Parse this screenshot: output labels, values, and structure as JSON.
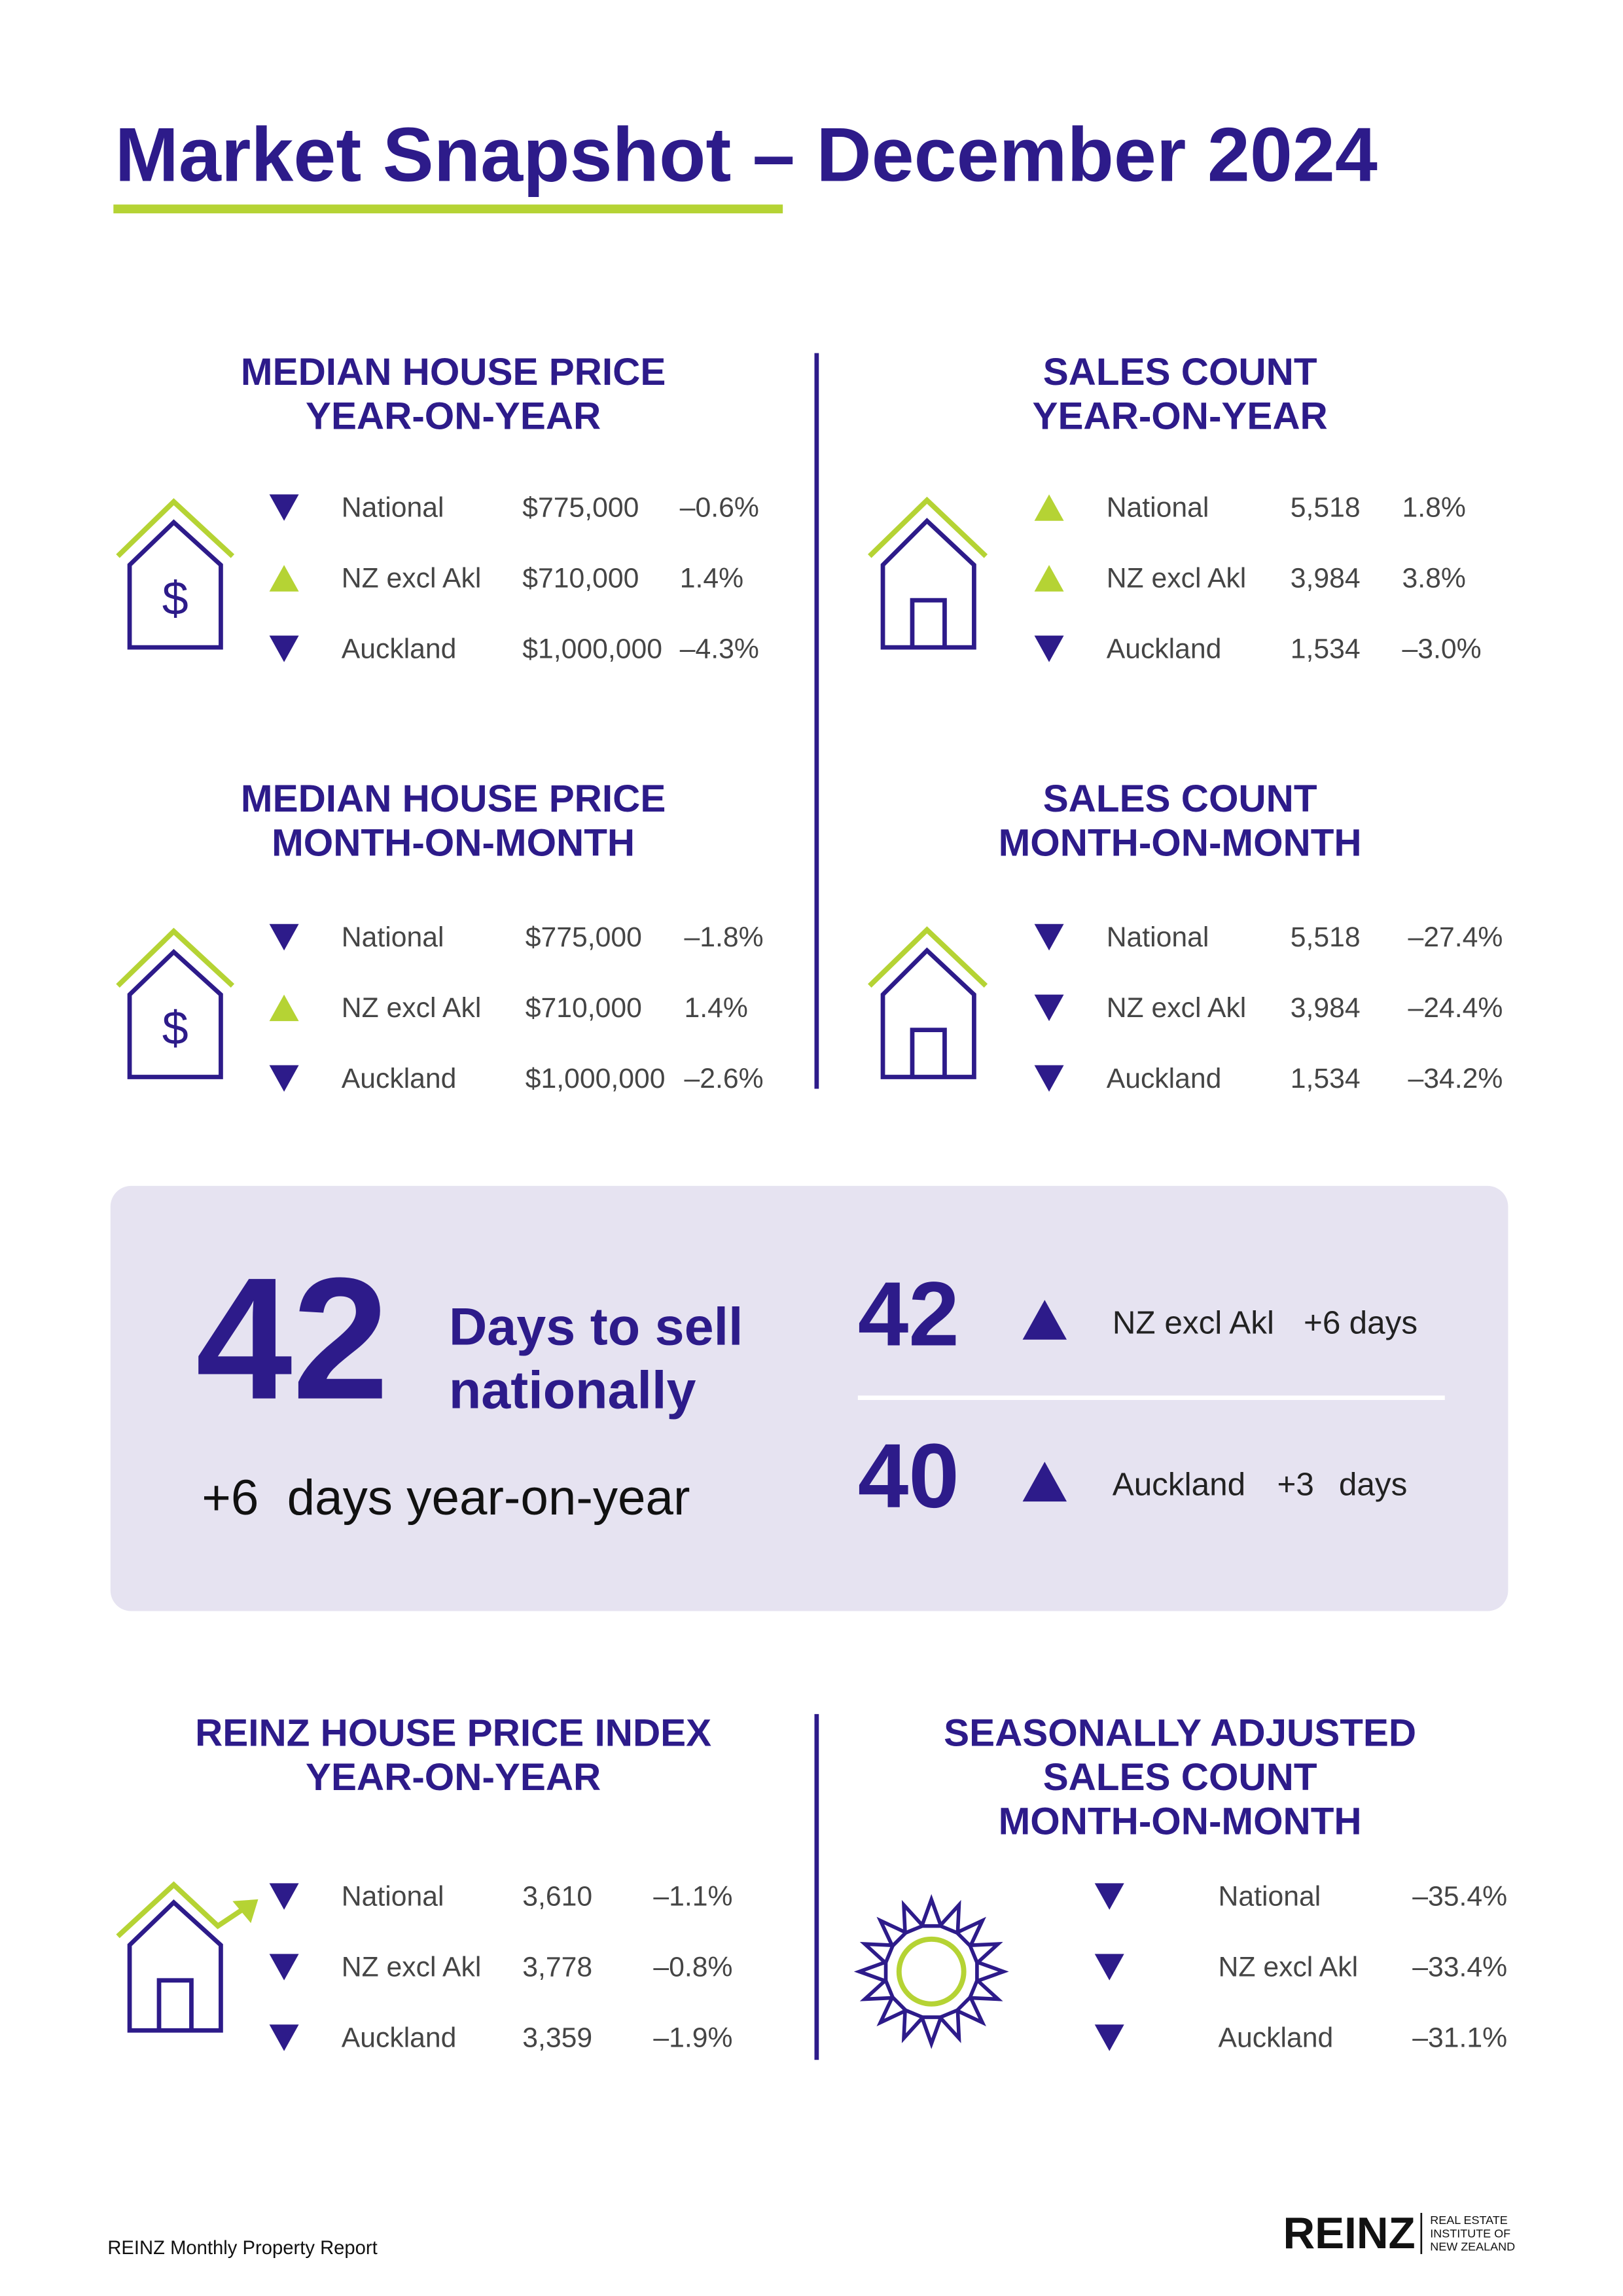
{
  "title": "Market Snapshot – December 2024",
  "sections": [
    {
      "title": [
        "MEDIAN HOUSE PRICE",
        "YEAR-ON-YEAR"
      ],
      "rows": [
        {
          "direction": "down",
          "region": "National",
          "value": "$775,000",
          "change": "–0.6%"
        },
        {
          "direction": "up",
          "region": "NZ excl Akl",
          "value": "$710,000",
          "change": "1.4%"
        },
        {
          "direction": "down",
          "region": "Auckland",
          "value": "$1,000,000",
          "change": "–4.3%"
        }
      ]
    },
    {
      "title": [
        "SALES COUNT",
        "YEAR-ON-YEAR"
      ],
      "rows": [
        {
          "direction": "up",
          "region": "National",
          "value": "5,518",
          "change": "1.8%"
        },
        {
          "direction": "up",
          "region": "NZ excl Akl",
          "value": "3,984",
          "change": "3.8%"
        },
        {
          "direction": "down",
          "region": "Auckland",
          "value": "1,534",
          "change": "–3.0%"
        }
      ]
    },
    {
      "title": [
        "MEDIAN HOUSE PRICE",
        "MONTH-ON-MONTH"
      ],
      "rows": [
        {
          "direction": "down",
          "region": "National",
          "value": "$775,000",
          "change": "–1.8%"
        },
        {
          "direction": "up",
          "region": "NZ excl Akl",
          "value": "$710,000",
          "change": "1.4%"
        },
        {
          "direction": "down",
          "region": "Auckland",
          "value": "$1,000,000",
          "change": "–2.6%"
        }
      ]
    },
    {
      "title": [
        "SALES COUNT",
        "MONTH-ON-MONTH"
      ],
      "rows": [
        {
          "direction": "down",
          "region": "National",
          "value": "5,518",
          "change": "–27.4%"
        },
        {
          "direction": "down",
          "region": "NZ excl Akl",
          "value": "3,984",
          "change": "–24.4%"
        },
        {
          "direction": "down",
          "region": "Auckland",
          "value": "1,534",
          "change": "–34.2%"
        }
      ]
    },
    {
      "title": [
        "REINZ HOUSE PRICE INDEX",
        "YEAR-ON-YEAR"
      ],
      "rows": [
        {
          "direction": "down",
          "region": "National",
          "value": "3,610",
          "change": "–1.1%"
        },
        {
          "direction": "down",
          "region": "NZ excl Akl",
          "value": "3,778",
          "change": "–0.8%"
        },
        {
          "direction": "down",
          "region": "Auckland",
          "value": "3,359",
          "change": "–1.9%"
        }
      ]
    },
    {
      "title": [
        "SEASONALLY ADJUSTED",
        "SALES COUNT",
        "MONTH-ON-MONTH"
      ],
      "rows": [
        {
          "direction": "down",
          "region": "National",
          "change": "–35.4%"
        },
        {
          "direction": "down",
          "region": "NZ excl Akl",
          "change": "–33.4%"
        },
        {
          "direction": "down",
          "region": "Auckland",
          "change": "–31.1%"
        }
      ]
    }
  ],
  "days": {
    "national": {
      "value": "42",
      "label": [
        "Days to sell",
        "nationally"
      ],
      "change": "+6",
      "change_text": "days year-on-year"
    },
    "regions": [
      {
        "value": "42",
        "direction": "up",
        "region": "NZ excl Akl",
        "change": "+6",
        "unit": "days"
      },
      {
        "value": "40",
        "direction": "up",
        "region": "Auckland",
        "change": "+3",
        "unit": "days"
      }
    ]
  },
  "footer": "REINZ Monthly Property Report",
  "logo": {
    "name": "REINZ",
    "subtitle": [
      "REAL ESTATE",
      "INSTITUTE OF",
      "NEW ZEALAND"
    ]
  }
}
